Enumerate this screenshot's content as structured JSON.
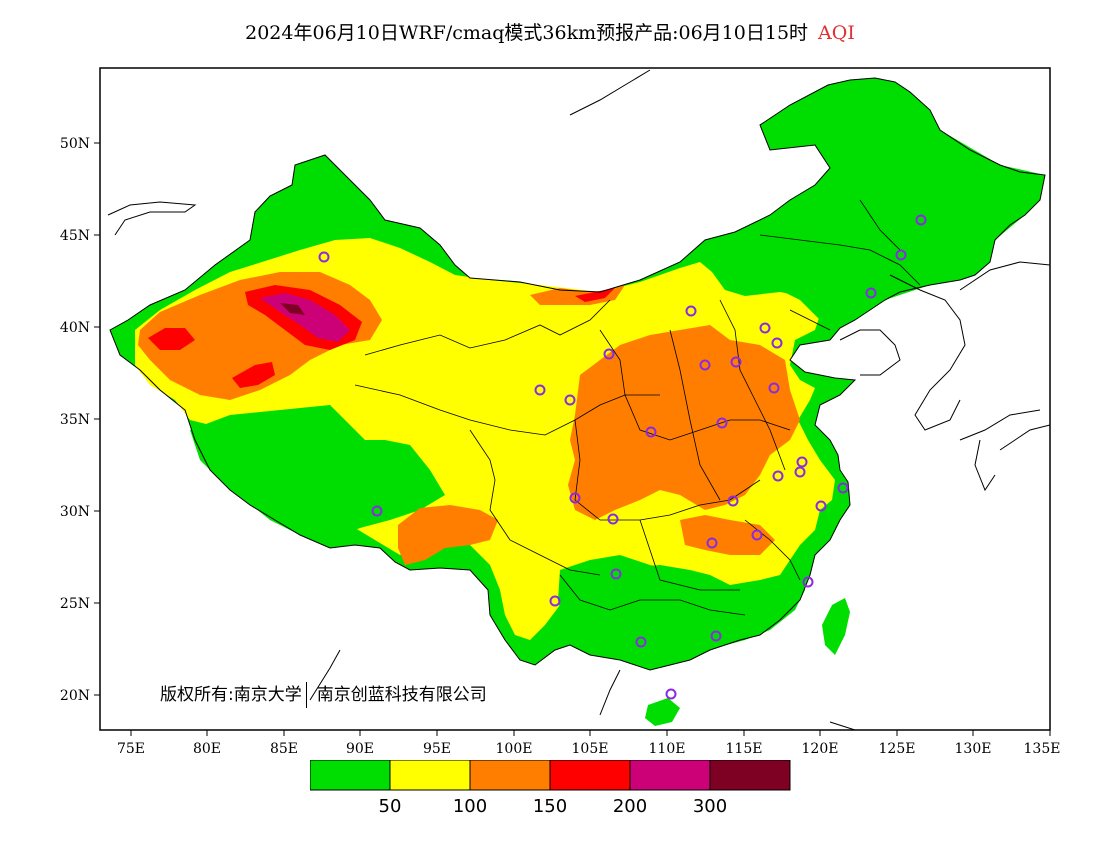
{
  "title": {
    "main": "2024年06月10日WRF/cmaq模式36km预报产品:06月10日15时",
    "variable": "AQI"
  },
  "axes": {
    "lat_labels": [
      "50N",
      "45N",
      "40N",
      "35N",
      "30N",
      "25N",
      "20N"
    ],
    "lon_labels": [
      "75E",
      "80E",
      "85E",
      "90E",
      "95E",
      "100E",
      "105E",
      "110E",
      "115E",
      "120E",
      "125E",
      "130E",
      "135E"
    ]
  },
  "copyright": {
    "owner": "版权所有:南京大学",
    "partner": "南京创蓝科技有限公司"
  },
  "legend": {
    "colors": [
      "#00dd00",
      "#ffff00",
      "#ff7e00",
      "#ff0000",
      "#cc0077",
      "#7e0023"
    ],
    "ticks": [
      "50",
      "100",
      "150",
      "200",
      "300"
    ]
  },
  "colors": {
    "good": "#00dd00",
    "moderate": "#ffff00",
    "usg": "#ff7e00",
    "unhealthy": "#ff0000",
    "very_unhealthy": "#cc0077",
    "hazardous": "#7e0023",
    "station_marker": "#8a2be2"
  },
  "map_layers": {
    "boundary": "province-boundaries",
    "coastline": "coastline",
    "markers": "station-circles"
  }
}
